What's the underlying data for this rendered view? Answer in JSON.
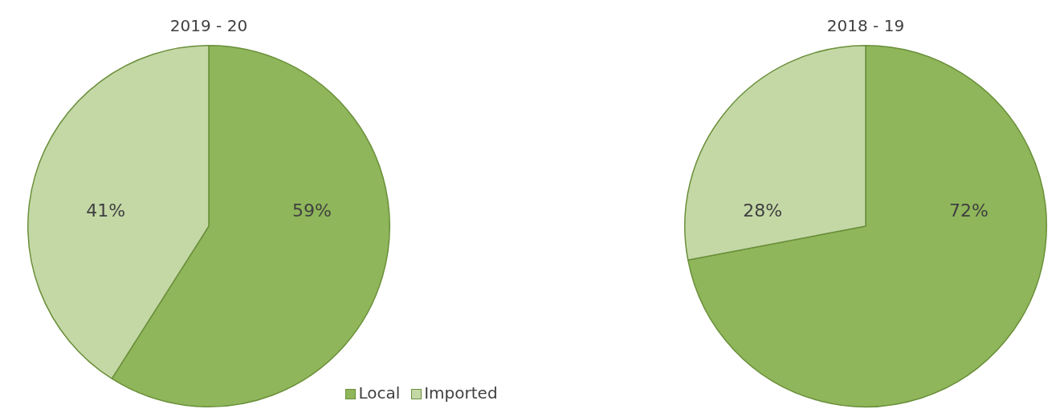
{
  "chart_data": [
    {
      "type": "pie",
      "title": "2019 - 20",
      "categories": [
        "Local",
        "Imported"
      ],
      "values": [
        59,
        41
      ],
      "colors": [
        "#8fb65a",
        "#c4d8a6"
      ],
      "value_labels": [
        "59%",
        "41%"
      ],
      "legend": "bottom"
    },
    {
      "type": "pie",
      "title": "2018 - 19",
      "categories": [
        null,
        null
      ],
      "values": [
        72,
        28
      ],
      "colors": [
        "#8fb65a",
        "#c4d8a6"
      ],
      "value_labels": [
        "72%",
        "28%"
      ]
    }
  ]
}
